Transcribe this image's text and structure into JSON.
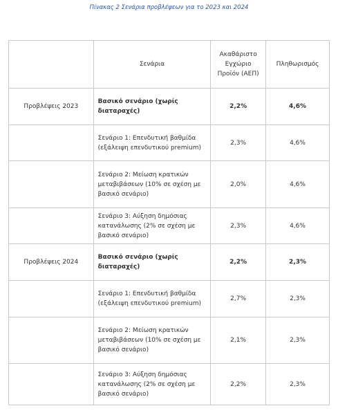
{
  "caption": "Πίνακας 2 Σενάρια προβλέψεων για το 2023 και 2024",
  "table": {
    "header": [
      "Σενάρια",
      "Ακαθάριστο Εγχώριο Προϊόν (ΑΕΠ)",
      "Πληθωρισμός"
    ],
    "groups": [
      {
        "label": "Προβλέψεις 2023",
        "rows": [
          [
            "Βασικό σενάριο (χωρίς διαταραχές)",
            "2,2%",
            "4,6%"
          ],
          [
            "Σενάριο 1: Επενδυτική βαθμίδα (εξάλειψη επενδυτικού premium)",
            "2,3%",
            "4,6%"
          ],
          [
            "Σενάριο 2: Μείωση κρατικών μεταβιβάσεων (10% σε σχέση με βασικό σενάριο)",
            "2,0%",
            "4,6%"
          ],
          [
            "Σενάριο 3: Αύξηση δημόσιας κατανάλωσης (2% σε σχέση με βασικό σενάριο)",
            "2,3%",
            "4,6%"
          ]
        ]
      },
      {
        "label": "Προβλέψεις 2024",
        "rows": [
          [
            "Βασικό σενάριο (χωρίς διαταραχές)",
            "2,2%",
            "2,3%"
          ],
          [
            "Σενάριο 1: Επενδυτική βαθμίδα (εξάλειψη επενδυτικού premium)",
            "2,7%",
            "2,3%"
          ],
          [
            "Σενάριο 2: Μείωση κρατικών μεταβιβάσεων (10% σε σχέση με βασικό σενάριο)",
            "2,1%",
            "2,3%"
          ],
          [
            "Σενάριο 3: Αύξηση δημόσιας κατανάλωσης (2% σε σχέση με βασικό σενάριο)",
            "2,2%",
            "2,3%"
          ]
        ]
      }
    ]
  }
}
